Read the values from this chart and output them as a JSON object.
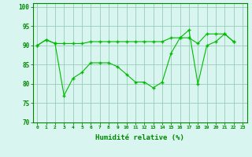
{
  "x": [
    0,
    1,
    2,
    3,
    4,
    5,
    6,
    7,
    8,
    9,
    10,
    11,
    12,
    13,
    14,
    15,
    16,
    17,
    18,
    19,
    20,
    21,
    22,
    23
  ],
  "line1": [
    90,
    91.5,
    90.5,
    90.5,
    90.5,
    90.5,
    91,
    91,
    91,
    91,
    91,
    91,
    91,
    91,
    91,
    92,
    92,
    92,
    90.5,
    93,
    93,
    93,
    91,
    null
  ],
  "line2": [
    90,
    91.5,
    90.5,
    77,
    81.5,
    83,
    85.5,
    85.5,
    85.5,
    84.5,
    82.5,
    80.5,
    80.5,
    79,
    80.5,
    88,
    92,
    94,
    80,
    90,
    91,
    93,
    91,
    null
  ],
  "line_color": "#00bb00",
  "bg_color": "#d8f5f0",
  "grid_color": "#99ccbb",
  "xlabel": "Humidité relative (%)",
  "ylabel_ticks": [
    70,
    75,
    80,
    85,
    90,
    95,
    100
  ],
  "xlim": [
    -0.5,
    23.5
  ],
  "ylim": [
    70,
    101
  ],
  "xtick_labels": [
    "0",
    "1",
    "2",
    "3",
    "4",
    "5",
    "6",
    "7",
    "8",
    "9",
    "10",
    "11",
    "12",
    "13",
    "14",
    "15",
    "16",
    "17",
    "18",
    "19",
    "20",
    "21",
    "22",
    "23"
  ],
  "axis_color": "#008800",
  "tick_color": "#008800"
}
